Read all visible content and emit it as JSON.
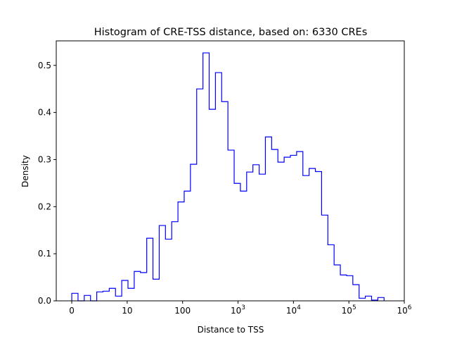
{
  "chart_data": {
    "type": "bar",
    "style": "step-histogram",
    "title": "Histogram of CRE-TSS distance, based on: 6330 CREs",
    "xlabel": "Distance to TSS",
    "ylabel": "Density",
    "x_scale": "symlog (decades)",
    "xlim_decades": [
      -0.28,
      6.0
    ],
    "ylim": [
      0,
      0.552
    ],
    "bin_start_decade": 0,
    "bin_width_decades": 0.1127,
    "density": [
      0.016,
      0,
      0.0115,
      0,
      0.019,
      0.0205,
      0.0265,
      0.01,
      0.0434,
      0.0265,
      0.0624,
      0.06,
      0.133,
      0.046,
      0.16,
      0.131,
      0.168,
      0.21,
      0.233,
      0.29,
      0.45,
      0.5265,
      0.4067,
      0.4846,
      0.423,
      0.32,
      0.2495,
      0.233,
      0.2735,
      0.289,
      0.269,
      0.348,
      0.3214,
      0.2945,
      0.305,
      0.309,
      0.317,
      0.266,
      0.281,
      0.2745,
      0.182,
      0.119,
      0.0763,
      0.055,
      0.0534,
      0.0344,
      0.0055,
      0.01,
      0.0015,
      0.007
    ],
    "line_color": "#0000ff",
    "x_ticks": [
      {
        "decade": 0,
        "label": "0",
        "sup": ""
      },
      {
        "decade": 1,
        "label": "10",
        "sup": ""
      },
      {
        "decade": 2,
        "label": "100",
        "sup": ""
      },
      {
        "decade": 3,
        "label": "10",
        "sup": "3"
      },
      {
        "decade": 4,
        "label": "10",
        "sup": "4"
      },
      {
        "decade": 5,
        "label": "10",
        "sup": "5"
      },
      {
        "decade": 6,
        "label": "10",
        "sup": "6"
      }
    ],
    "y_ticks": [
      {
        "value": 0,
        "label": "0.0"
      },
      {
        "value": 0.1,
        "label": "0.1"
      },
      {
        "value": 0.2,
        "label": "0.2"
      },
      {
        "value": 0.3,
        "label": "0.3"
      },
      {
        "value": 0.4,
        "label": "0.4"
      },
      {
        "value": 0.5,
        "label": "0.5"
      }
    ],
    "grid": false
  }
}
